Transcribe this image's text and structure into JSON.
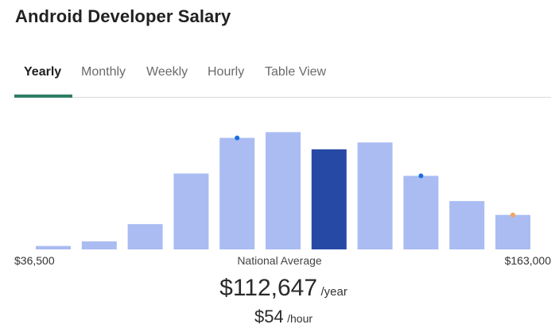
{
  "page": {
    "title": "Android Developer Salary"
  },
  "tabs": [
    {
      "label": "Yearly",
      "active": true
    },
    {
      "label": "Monthly",
      "active": false
    },
    {
      "label": "Weekly",
      "active": false
    },
    {
      "label": "Hourly",
      "active": false
    },
    {
      "label": "Table View",
      "active": false
    }
  ],
  "colors": {
    "accent": "#2e7d66",
    "bar": "#aabcf2",
    "bar_highlight": "#2649a6",
    "dot_blue": "#1a6fd8",
    "dot_orange": "#f5a35b"
  },
  "chart_data": {
    "type": "bar",
    "title": "",
    "xlabel": "National Average",
    "x_min_label": "$36,500",
    "x_max_label": "$163,000",
    "values": [
      3,
      7,
      22,
      66,
      97,
      102,
      87,
      93,
      64,
      42,
      30
    ],
    "highlight_index": 6,
    "markers": [
      {
        "bar": 4,
        "color": "blue"
      },
      {
        "bar": 8,
        "color": "blue"
      },
      {
        "bar": 10,
        "color": "orange"
      }
    ],
    "ylim": [
      0,
      105
    ]
  },
  "summary": {
    "average_value": "$112,647",
    "average_unit": "/year",
    "hourly_value": "$54",
    "hourly_unit": "/hour"
  }
}
